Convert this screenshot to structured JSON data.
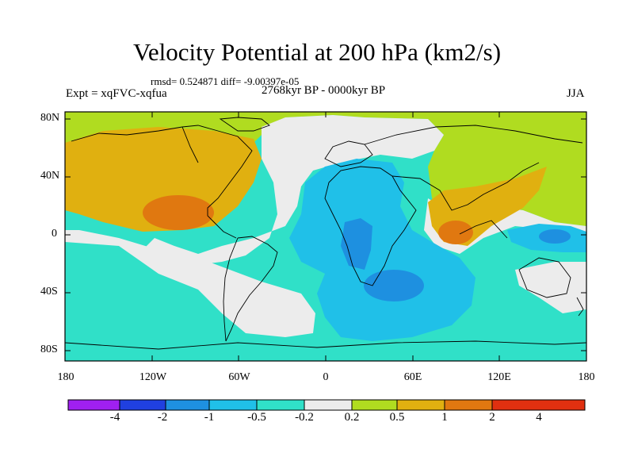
{
  "title": "Velocity Potential at 200 hPa (km2/s)",
  "stats": "rmsd= 0.524871 diff= -9.00397e-05",
  "experiment": "Expt = xqFVC-xqfua",
  "period": "2768kyr BP - 0000kyr BP",
  "season": "JJA",
  "y_axis_labels": [
    "80N",
    "40N",
    "0",
    "40S",
    "80S"
  ],
  "x_axis_labels": [
    "180",
    "120W",
    "60W",
    "0",
    "60E",
    "120E",
    "180"
  ],
  "colorbar": {
    "colors": [
      "#a020f0",
      "#2040e0",
      "#1e90e0",
      "#20c0e8",
      "#30e0c8",
      "#ececec",
      "#b0dc20",
      "#e0b010",
      "#e07810",
      "#e03010"
    ],
    "labels": [
      "-4",
      "-2",
      "-1",
      "-0.5",
      "-0.2",
      "0.2",
      "0.5",
      "1",
      "2",
      "4"
    ]
  }
}
